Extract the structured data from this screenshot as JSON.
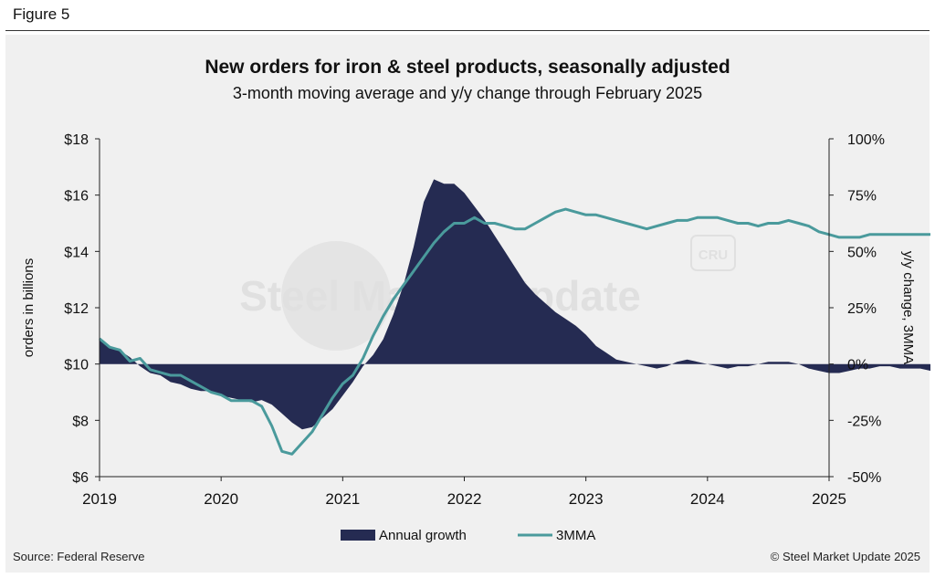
{
  "header": {
    "figure_label": "Figure 5"
  },
  "footer": {
    "source": "Source: Federal Reserve",
    "copyright": "© Steel Market Update 2025"
  },
  "watermark": {
    "text": "Steel Market Update",
    "badge": "CRU"
  },
  "colors": {
    "area": "#252b52",
    "line": "#4a9a9c",
    "axis": "#222222",
    "panel": "#f0f0f0"
  },
  "chart_data": {
    "type": "area",
    "title": "New orders for iron & steel products, seasonally adjusted",
    "subtitle": "3-month moving average and y/y change through February 2025",
    "ylabel_left": "orders in billions",
    "ylabel_right": "y/y change, 3MMA",
    "x_ticks": [
      "2019",
      "2020",
      "2021",
      "2022",
      "2023",
      "2024",
      "2025"
    ],
    "y_left": {
      "min": 6,
      "max": 18,
      "ticks": [
        "$6",
        "$8",
        "$10",
        "$12",
        "$14",
        "$16",
        "$18"
      ]
    },
    "y_right": {
      "min": -50,
      "max": 100,
      "ticks": [
        "-50%",
        "-25%",
        "0%",
        "25%",
        "50%",
        "75%",
        "100%"
      ]
    },
    "legend": {
      "position": "bottom",
      "entries": [
        "Annual growth",
        "3MMA"
      ]
    },
    "x_start": "2019-01",
    "series": [
      {
        "name": "Annual growth",
        "type": "area",
        "axis": "right",
        "values": [
          11,
          8,
          6,
          3,
          -1,
          -4,
          -5,
          -8,
          -9,
          -11,
          -12,
          -12,
          -14,
          -15,
          -16,
          -17,
          -16,
          -18,
          -22,
          -26,
          -29,
          -28,
          -24,
          -20,
          -14,
          -8,
          -1,
          4,
          11,
          22,
          35,
          52,
          72,
          82,
          80,
          80,
          76,
          70,
          64,
          57,
          50,
          43,
          36,
          31,
          27,
          23,
          20,
          17,
          13,
          8,
          5,
          2,
          1,
          0,
          -1,
          -2,
          -1,
          1,
          2,
          1,
          0,
          -1,
          -2,
          -1,
          -1,
          0,
          1,
          1,
          1,
          0,
          -2,
          -3,
          -4,
          -4,
          -3,
          -2,
          -2,
          -1,
          -1,
          -2,
          -2,
          -2,
          -3
        ]
      },
      {
        "name": "3MMA",
        "type": "line",
        "axis": "left",
        "values": [
          10.9,
          10.6,
          10.5,
          10.1,
          10.2,
          9.8,
          9.7,
          9.6,
          9.6,
          9.4,
          9.2,
          9.0,
          8.9,
          8.7,
          8.7,
          8.7,
          8.5,
          7.8,
          6.9,
          6.8,
          7.2,
          7.6,
          8.2,
          8.8,
          9.3,
          9.6,
          10.2,
          11.0,
          11.7,
          12.3,
          12.8,
          13.3,
          13.8,
          14.3,
          14.7,
          15.0,
          15.0,
          15.2,
          15.0,
          15.0,
          14.9,
          14.8,
          14.8,
          15.0,
          15.2,
          15.4,
          15.5,
          15.4,
          15.3,
          15.3,
          15.2,
          15.1,
          15.0,
          14.9,
          14.8,
          14.9,
          15.0,
          15.1,
          15.1,
          15.2,
          15.2,
          15.2,
          15.1,
          15.0,
          15.0,
          14.9,
          15.0,
          15.0,
          15.1,
          15.0,
          14.9,
          14.7,
          14.6,
          14.5,
          14.5,
          14.5,
          14.6,
          14.6,
          14.6,
          14.6,
          14.6,
          14.6,
          14.6
        ]
      }
    ]
  }
}
